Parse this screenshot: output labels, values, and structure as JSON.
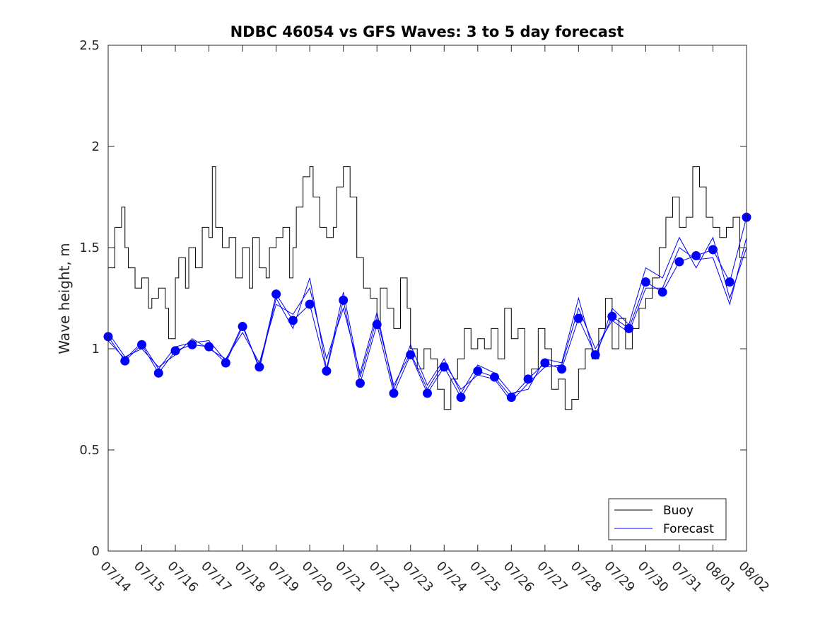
{
  "chart_data": {
    "type": "line",
    "title": "NDBC 46054 vs GFS Waves: 3 to 5 day forecast",
    "xlabel": "",
    "ylabel": "Wave height, m",
    "ylim": [
      0,
      2.5
    ],
    "yticks": [
      0,
      0.5,
      1,
      1.5,
      2,
      2.5
    ],
    "ytick_labels": [
      "0",
      "0.5",
      "1",
      "1.5",
      "2",
      "2.5"
    ],
    "xlim": [
      "07/14",
      "08/02"
    ],
    "xtick_labels": [
      "07/14",
      "07/15",
      "07/16",
      "07/17",
      "07/18",
      "07/19",
      "07/20",
      "07/21",
      "07/22",
      "07/23",
      "07/24",
      "07/25",
      "07/26",
      "07/27",
      "07/28",
      "07/29",
      "07/30",
      "07/31",
      "08/01",
      "08/02"
    ],
    "grid": false,
    "legend_position": "bottom-right",
    "colors": {
      "buoy": "#000000",
      "forecast": "#0000ff"
    },
    "series": [
      {
        "name": "Buoy",
        "x": [
          0,
          0.2,
          0.4,
          0.5,
          0.6,
          0.8,
          1.0,
          1.2,
          1.3,
          1.5,
          1.7,
          1.8,
          2.0,
          2.1,
          2.3,
          2.4,
          2.6,
          2.8,
          3.0,
          3.1,
          3.2,
          3.4,
          3.6,
          3.8,
          4.0,
          4.2,
          4.3,
          4.5,
          4.7,
          4.8,
          5.0,
          5.2,
          5.4,
          5.5,
          5.6,
          5.8,
          6.0,
          6.1,
          6.3,
          6.5,
          6.7,
          6.8,
          7.0,
          7.2,
          7.4,
          7.6,
          7.8,
          8.0,
          8.1,
          8.3,
          8.5,
          8.7,
          8.9,
          9.0,
          9.2,
          9.4,
          9.6,
          9.8,
          10.0,
          10.2,
          10.4,
          10.6,
          10.8,
          11.0,
          11.2,
          11.4,
          11.6,
          11.8,
          12.0,
          12.2,
          12.4,
          12.6,
          12.8,
          13.0,
          13.2,
          13.4,
          13.6,
          13.8,
          14.0,
          14.2,
          14.4,
          14.6,
          14.8,
          15.0,
          15.2,
          15.4,
          15.6,
          15.8,
          16.0,
          16.2,
          16.4,
          16.6,
          16.8,
          17.0,
          17.2,
          17.4,
          17.6,
          17.8,
          18.0,
          18.2,
          18.4,
          18.6,
          18.8,
          19.0
        ],
        "values": [
          1.4,
          1.6,
          1.7,
          1.5,
          1.4,
          1.3,
          1.35,
          1.2,
          1.25,
          1.3,
          1.2,
          1.05,
          1.35,
          1.45,
          1.3,
          1.5,
          1.4,
          1.6,
          1.55,
          1.9,
          1.6,
          1.5,
          1.55,
          1.35,
          1.5,
          1.3,
          1.55,
          1.4,
          1.35,
          1.5,
          1.55,
          1.6,
          1.35,
          1.5,
          1.7,
          1.85,
          1.9,
          1.75,
          1.6,
          1.55,
          1.6,
          1.8,
          1.9,
          1.75,
          1.45,
          1.3,
          1.25,
          1.1,
          1.3,
          1.2,
          1.1,
          1.35,
          1.2,
          1.0,
          0.9,
          1.0,
          0.95,
          0.8,
          0.7,
          0.85,
          0.95,
          1.1,
          1.0,
          1.05,
          1.0,
          1.1,
          0.95,
          1.2,
          1.05,
          1.1,
          0.85,
          0.9,
          1.1,
          1.0,
          0.8,
          0.85,
          0.7,
          0.75,
          0.9,
          1.0,
          0.95,
          1.1,
          1.25,
          1.0,
          1.15,
          1.0,
          1.1,
          1.2,
          1.25,
          1.35,
          1.5,
          1.65,
          1.75,
          1.6,
          1.65,
          1.9,
          1.8,
          1.65,
          1.6,
          1.55,
          1.6,
          1.65,
          1.45,
          1.5
        ]
      },
      {
        "name": "Forecast",
        "x": [
          0,
          0.5,
          1.0,
          1.5,
          2.0,
          2.5,
          3.0,
          3.5,
          4.0,
          4.5,
          5.0,
          5.5,
          6.0,
          6.5,
          7.0,
          7.5,
          8.0,
          8.5,
          9.0,
          9.5,
          10.0,
          10.5,
          11.0,
          11.5,
          12.0,
          12.5,
          13.0,
          13.5,
          14.0,
          14.5,
          15.0,
          15.5,
          16.0,
          16.5,
          17.0,
          17.5,
          18.0,
          18.5,
          19.0
        ],
        "values": [
          1.06,
          0.94,
          1.02,
          0.88,
          0.99,
          1.02,
          1.01,
          0.93,
          1.11,
          0.91,
          1.27,
          1.14,
          1.22,
          0.89,
          1.24,
          0.83,
          1.12,
          0.78,
          0.97,
          0.78,
          0.91,
          0.76,
          0.89,
          0.86,
          0.76,
          0.85,
          0.93,
          0.9,
          1.15,
          0.97,
          1.16,
          1.1,
          1.33,
          1.28,
          1.43,
          1.46,
          1.49,
          1.33,
          1.65
        ]
      },
      {
        "name": "",
        "x": [
          0,
          0.5,
          1.0,
          1.5,
          2.0,
          2.5,
          3.0,
          3.5,
          4.0,
          4.5,
          5.0,
          5.5,
          6.0,
          6.5,
          7.0,
          7.5,
          8.0,
          8.5,
          9.0,
          9.5,
          10.0,
          10.5,
          11.0,
          11.5,
          12.0,
          12.5,
          13.0,
          13.5,
          14.0,
          14.5,
          15.0,
          15.5,
          16.0,
          16.5,
          17.0,
          17.5,
          18.0,
          18.5,
          19.0
        ],
        "values": [
          1.08,
          0.96,
          1.0,
          0.91,
          0.97,
          1.05,
          1.0,
          0.95,
          1.08,
          0.93,
          1.22,
          1.17,
          1.3,
          0.95,
          1.2,
          0.88,
          1.18,
          0.8,
          1.02,
          0.82,
          0.95,
          0.78,
          0.92,
          0.88,
          0.78,
          0.8,
          0.95,
          0.93,
          1.25,
          0.95,
          1.2,
          1.12,
          1.4,
          1.35,
          1.55,
          1.4,
          1.55,
          1.25,
          1.5
        ]
      },
      {
        "name": "",
        "x": [
          0,
          0.5,
          1.0,
          1.5,
          2.0,
          2.5,
          3.0,
          3.5,
          4.0,
          4.5,
          5.0,
          5.5,
          6.0,
          6.5,
          7.0,
          7.5,
          8.0,
          8.5,
          9.0,
          9.5,
          10.0,
          10.5,
          11.0,
          11.5,
          12.0,
          12.5,
          13.0,
          13.5,
          14.0,
          14.5,
          15.0,
          15.5,
          16.0,
          16.5,
          17.0,
          17.5,
          18.0,
          18.5,
          19.0
        ],
        "values": [
          1.04,
          0.95,
          1.03,
          0.9,
          1.01,
          1.03,
          1.04,
          0.94,
          1.12,
          0.9,
          1.25,
          1.1,
          1.35,
          0.9,
          1.28,
          0.86,
          1.15,
          0.82,
          0.98,
          0.8,
          0.93,
          0.8,
          0.87,
          0.85,
          0.74,
          0.83,
          0.91,
          0.92,
          1.2,
          1.0,
          1.14,
          1.08,
          1.3,
          1.3,
          1.5,
          1.44,
          1.45,
          1.22,
          1.55
        ]
      }
    ]
  }
}
